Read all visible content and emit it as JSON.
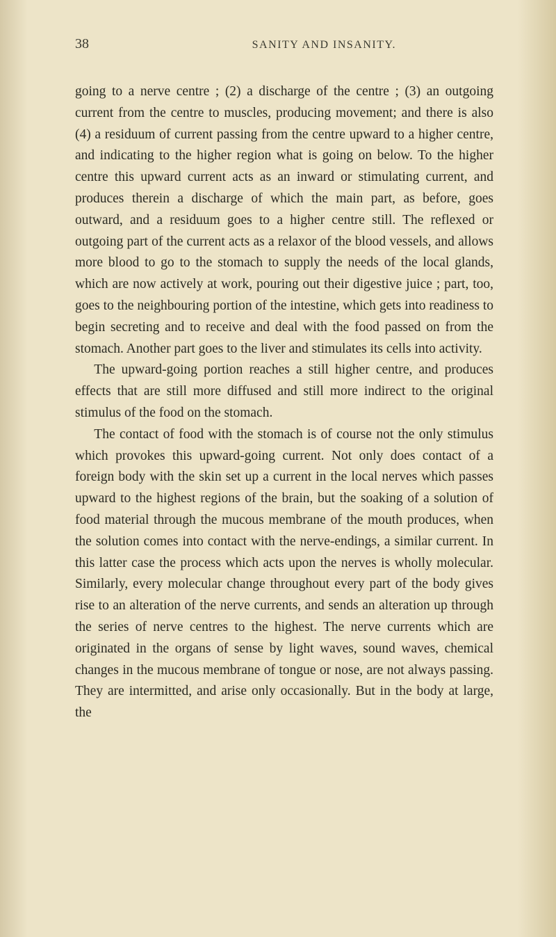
{
  "page": {
    "number": "38",
    "running_title": "SANITY AND INSANITY."
  },
  "paragraphs": {
    "p1": "going to a nerve centre ; (2) a discharge of the centre ; (3) an outgoing current from the centre to muscles, producing movement; and there is also (4) a residuum of current passing from the centre upward to a higher centre, and indicating to the higher region what is going on below. To the higher centre this upward current acts as an inward or stimulating current, and produces therein a discharge of which the main part, as before, goes outward, and a residuum goes to a higher centre still. The reflexed or outgoing part of the current acts as a relaxor of the blood vessels, and allows more blood to go to the stomach to supply the needs of the local glands, which are now actively at work, pouring out their digestive juice ; part, too, goes to the neighbouring portion of the intestine, which gets into readiness to begin secreting and to receive and deal with the food passed on from the stomach. Another part goes to the liver and stimulates its cells into activity.",
    "p2": "The upward-going portion reaches a still higher centre, and produces effects that are still more diffused and still more indirect to the original stimulus of the food on the stomach.",
    "p3": "The contact of food with the stomach is of course not the only stimulus which provokes this upward-going current. Not only does contact of a foreign body with the skin set up a current in the local nerves which passes upward to the highest regions of the brain, but the soaking of a solution of food material through the mucous membrane of the mouth produces, when the solution comes into contact with the nerve-endings, a similar current. In this latter case the process which acts upon the nerves is wholly molecular. Similarly, every molecular change throughout every part of the body gives rise to an alteration of the nerve currents, and sends an alteration up through the series of nerve centres to the highest. The nerve currents which are originated in the organs of sense by light waves, sound waves, chemical changes in the mucous membrane of tongue or nose, are not always passing. They are intermitted, and arise only occasionally. But in the body at large, the"
  },
  "colors": {
    "background": "#ede4c8",
    "text": "#2a2a22",
    "header_text": "#3a3a30"
  }
}
